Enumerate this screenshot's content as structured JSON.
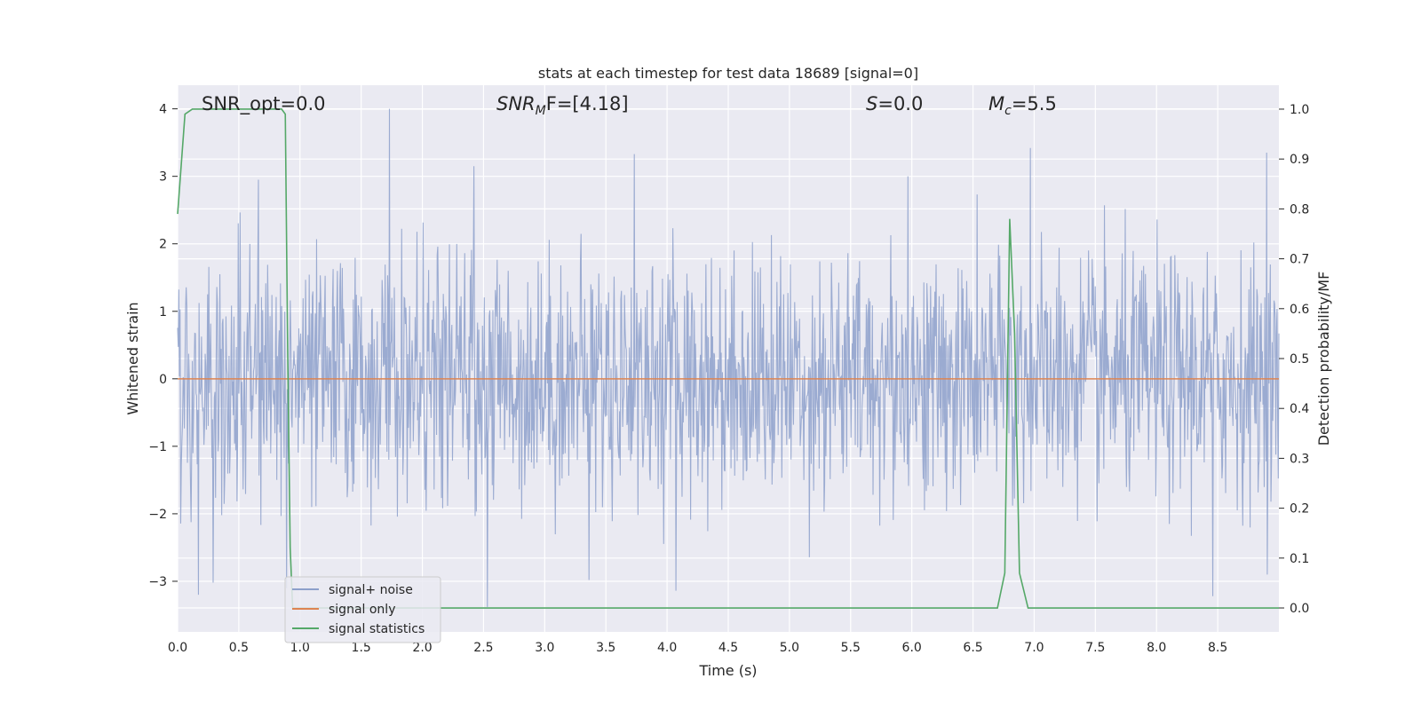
{
  "chart_data": {
    "type": "line",
    "title": "stats at each timestep for test data 18689 [signal=0]",
    "xlabel": "Time (s)",
    "ylabel": "Whitened strain",
    "y2label": "Detection probability/MF",
    "xlim": [
      0.0,
      9.0
    ],
    "ylim": [
      -3.75,
      4.35
    ],
    "y2lim": [
      -0.048,
      1.048
    ],
    "x_ticks": [
      "0.0",
      "0.5",
      "1.0",
      "1.5",
      "2.0",
      "2.5",
      "3.0",
      "3.5",
      "4.0",
      "4.5",
      "5.0",
      "5.5",
      "6.0",
      "6.5",
      "7.0",
      "7.5",
      "8.0",
      "8.5"
    ],
    "y_ticks": [
      "−3",
      "−2",
      "−1",
      "0",
      "1",
      "2",
      "3",
      "4"
    ],
    "y2_ticks": [
      "0.0",
      "0.1",
      "0.2",
      "0.3",
      "0.4",
      "0.5",
      "0.6",
      "0.7",
      "0.8",
      "0.9",
      "1.0"
    ],
    "grid": true,
    "legend_position": "lower-left",
    "annotations": {
      "snr_opt": "SNR_opt=0.0",
      "snr_mf_main": "SNR",
      "snr_mf_sub": "M",
      "snr_mf_rest": "F=[4.18]",
      "s_main": "S",
      "s_rest": "=0.0",
      "mc_main": "M",
      "mc_sub": "c",
      "mc_rest": "=5.5"
    },
    "series": [
      {
        "name": "signal+ noise",
        "axis": "left",
        "color": "#8da0cb",
        "x_range": [
          0.0,
          9.0
        ],
        "sample_count": 1800,
        "approx_std": 0.9,
        "peaks": [
          {
            "x": 1.73,
            "y": 4.0
          },
          {
            "x": 3.73,
            "y": 3.33
          },
          {
            "x": 6.97,
            "y": 3.42
          },
          {
            "x": 8.9,
            "y": 3.35
          },
          {
            "x": 2.42,
            "y": 3.15
          },
          {
            "x": 0.66,
            "y": 2.95
          },
          {
            "x": 5.97,
            "y": 3.0
          }
        ],
        "troughs": [
          {
            "x": 2.53,
            "y": -3.38
          },
          {
            "x": 0.17,
            "y": -3.2
          },
          {
            "x": 0.29,
            "y": -3.02
          },
          {
            "x": 4.07,
            "y": -3.14
          },
          {
            "x": 3.36,
            "y": -2.98
          },
          {
            "x": 8.46,
            "y": -3.22
          },
          {
            "x": 0.89,
            "y": -3.1
          }
        ]
      },
      {
        "name": "signal only",
        "axis": "left",
        "color": "#dd8452",
        "x": [
          0.0,
          9.0
        ],
        "y": [
          0.0,
          0.0
        ]
      },
      {
        "name": "signal statistics",
        "axis": "right",
        "color": "#55a868",
        "x": [
          0.0,
          0.06,
          0.12,
          0.25,
          0.5,
          0.75,
          0.85,
          0.88,
          0.9,
          0.92,
          0.94,
          6.7,
          6.76,
          6.8,
          6.84,
          6.88,
          6.9,
          6.95,
          9.0
        ],
        "y": [
          0.79,
          0.99,
          1.0,
          1.0,
          1.0,
          1.0,
          1.0,
          0.99,
          0.5,
          0.12,
          0.0,
          0.0,
          0.07,
          0.78,
          0.55,
          0.07,
          0.05,
          0.0,
          0.0
        ]
      }
    ]
  }
}
